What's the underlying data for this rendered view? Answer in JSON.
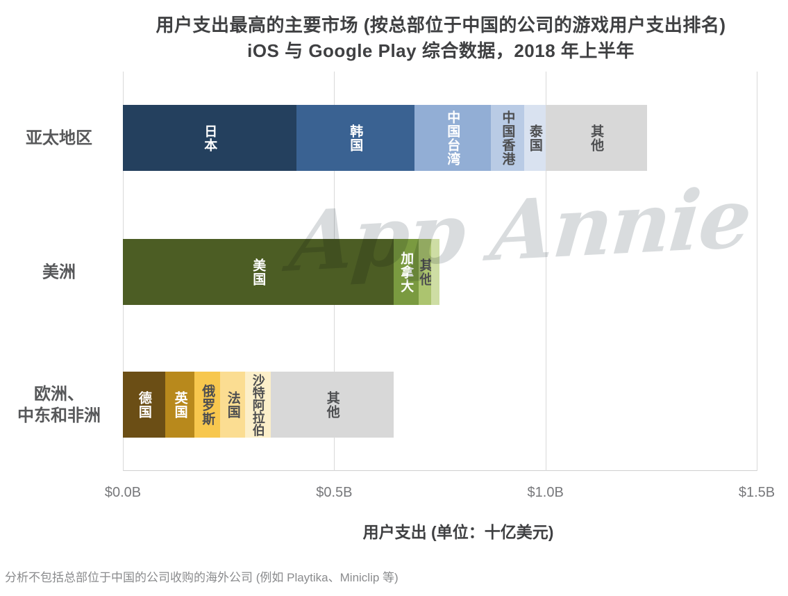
{
  "chart_data": {
    "type": "bar",
    "orientation": "horizontal-stacked",
    "title_line1": "用户支出最高的主要市场 (按总部位于中国的公司的游戏用户支出排名)",
    "title_line2": "iOS 与 Google Play 综合数据，2018 年上半年",
    "xlabel": "用户支出 (单位：十亿美元)",
    "x_ticks": [
      "$0.0B",
      "$0.5B",
      "$1.0B",
      "$1.5B"
    ],
    "x_tick_values": [
      0,
      0.5,
      1.0,
      1.5
    ],
    "xlim": [
      0,
      1.5
    ],
    "unit": "USD billions",
    "grid": "vertical",
    "rows": [
      {
        "region": "亚太地区",
        "region_lines": [
          "亚太地区"
        ],
        "total": 1.24,
        "segments": [
          {
            "label": "日本",
            "value": 0.41,
            "color": "#24405e",
            "label_color": "#ffffff"
          },
          {
            "label": "韩国",
            "value": 0.28,
            "color": "#3a6292",
            "label_color": "#ffffff"
          },
          {
            "label": "中国台湾",
            "value": 0.18,
            "color": "#92aed5",
            "label_color": "#ffffff"
          },
          {
            "label": "中国香港",
            "value": 0.08,
            "color": "#b9cbe5",
            "label_color": "#4d4e50"
          },
          {
            "label": "泰国",
            "value": 0.05,
            "color": "#d9e2f0",
            "label_color": "#4d4e50"
          },
          {
            "label": "其他",
            "value": 0.24,
            "color": "#d8d8d8",
            "label_color": "#4d4e50"
          }
        ]
      },
      {
        "region": "美洲",
        "region_lines": [
          "美洲"
        ],
        "total": 0.75,
        "segments": [
          {
            "label": "美国",
            "value": 0.64,
            "color": "#4c5d24",
            "label_color": "#ffffff"
          },
          {
            "label": "加拿大",
            "value": 0.06,
            "color": "#7a9a40",
            "label_color": "#ffffff"
          },
          {
            "label": "其他",
            "value": 0.03,
            "color": "#acc46f",
            "label_color": "#4d4e50"
          },
          {
            "label": "",
            "value": 0.02,
            "color": "#cedda4",
            "label_color": "#4d4e50"
          }
        ]
      },
      {
        "region": "欧洲、中东和非洲",
        "region_lines": [
          "欧洲、",
          "中东和非洲"
        ],
        "total": 0.64,
        "segments": [
          {
            "label": "德国",
            "value": 0.1,
            "color": "#6b4e15",
            "label_color": "#ffffff"
          },
          {
            "label": "英国",
            "value": 0.07,
            "color": "#b8891c",
            "label_color": "#ffffff"
          },
          {
            "label": "俄罗斯",
            "value": 0.06,
            "color": "#f7c74e",
            "label_color": "#4d4e50"
          },
          {
            "label": "法国",
            "value": 0.06,
            "color": "#fbdd92",
            "label_color": "#4d4e50"
          },
          {
            "label": "沙特阿拉伯",
            "value": 0.06,
            "color": "#fcefc9",
            "label_color": "#4d4e50"
          },
          {
            "label": "其他",
            "value": 0.29,
            "color": "#d8d8d8",
            "label_color": "#4d4e50"
          }
        ]
      }
    ],
    "footnote": "分析不包括总部位于中国的公司收购的海外公司 (例如 Playtika、Miniclip 等)",
    "watermark": "App Annie",
    "colors": {
      "grid": "#d9d9d9",
      "title_text": "#3f4042",
      "region_label_text": "#57585a",
      "tick_text": "#77787b",
      "footnote_text": "#8a8b8d",
      "watermark_text": "#d9dcde"
    }
  }
}
